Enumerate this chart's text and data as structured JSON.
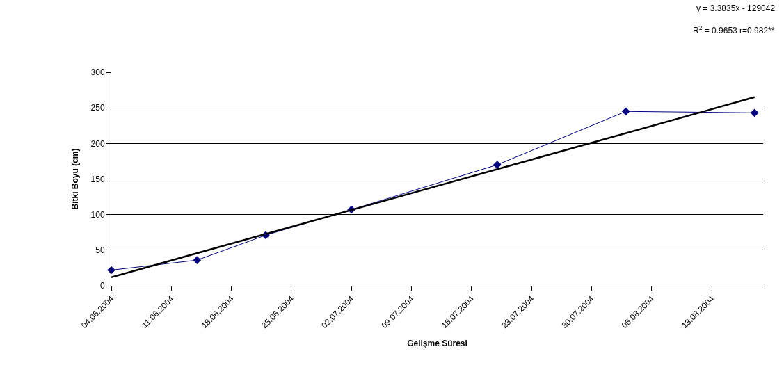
{
  "chart_data": {
    "type": "line",
    "xlabel": "Gelişme Süresi",
    "ylabel": "Bitki Boyu (cm)",
    "series": [
      {
        "color": "#000080",
        "marker": "diamond",
        "x": [
          "2004-06-04",
          "2004-06-14",
          "2004-06-22",
          "2004-07-02",
          "2004-07-19",
          "2004-08-03",
          "2004-08-18"
        ],
        "values": [
          22,
          36,
          71,
          107,
          170,
          245,
          243
        ]
      },
      {
        "color": "#000000",
        "marker": "none",
        "x": [
          "2004-06-04",
          "2004-08-18"
        ],
        "values": [
          12,
          265
        ]
      }
    ],
    "annotations": [
      "y = 3.3835x - 129042",
      "R$^{2}$ = 0.9653 r=0.982**"
    ],
    "xlim": [
      "2004-06-04",
      "2004-08-19"
    ],
    "xticks": [
      {
        "value": "2004-06-04",
        "label": "04.06.2004"
      },
      {
        "value": "2004-06-11",
        "label": "11.06.2004"
      },
      {
        "value": "2004-06-18",
        "label": "18.06.2004"
      },
      {
        "value": "2004-06-25",
        "label": "25.06.2004"
      },
      {
        "value": "2004-07-02",
        "label": "02.07.2004"
      },
      {
        "value": "2004-07-09",
        "label": "09.07.2004"
      },
      {
        "value": "2004-07-16",
        "label": "16.07.2004"
      },
      {
        "value": "2004-07-23",
        "label": "23.07.2004"
      },
      {
        "value": "2004-07-30",
        "label": "30.07.2004"
      },
      {
        "value": "2004-08-06",
        "label": "06.08.2004"
      },
      {
        "value": "2004-08-13",
        "label": "13.08.2004"
      }
    ],
    "ylim": [
      0,
      300
    ],
    "yticks": [
      0,
      50,
      100,
      150,
      200,
      250,
      300
    ],
    "grid": "y",
    "legend": false
  }
}
